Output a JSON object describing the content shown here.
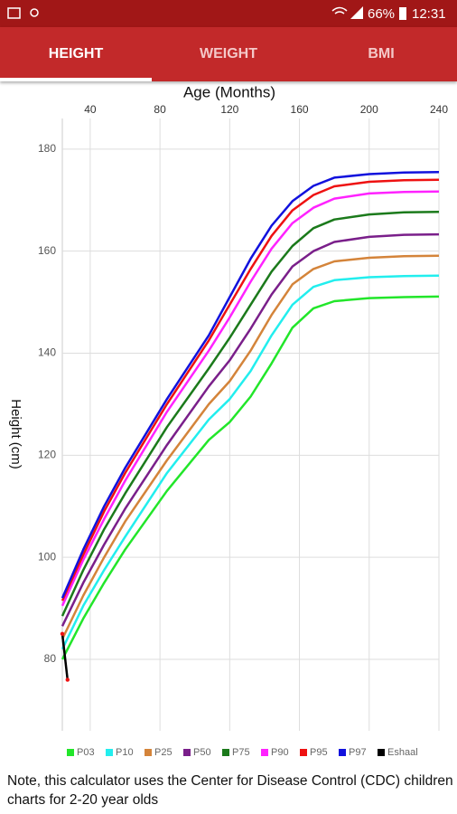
{
  "status_bar": {
    "battery": "66%",
    "time": "12:31"
  },
  "tabs": [
    "HEIGHT",
    "WEIGHT",
    "BMI"
  ],
  "chart_data": {
    "type": "line",
    "xlabel": "Age (Months)",
    "ylabel": "Height (cm)",
    "x": [
      24,
      36,
      48,
      60,
      84,
      108,
      120,
      132,
      144,
      156,
      168,
      180,
      200,
      220,
      240
    ],
    "xlim": [
      24,
      240
    ],
    "xticks": [
      40,
      80,
      120,
      160,
      200,
      240
    ],
    "ylim": [
      66,
      186
    ],
    "yticks": [
      80,
      100,
      120,
      140,
      160,
      180
    ],
    "grid": true,
    "series": [
      {
        "name": "P03",
        "color": "#22e62a",
        "values": [
          80,
          88,
          95,
          101.5,
          113,
          123,
          126.5,
          131.5,
          138,
          145,
          148.8,
          150.2,
          150.8,
          151,
          151.1
        ]
      },
      {
        "name": "P10",
        "color": "#22eeee",
        "values": [
          82,
          90.5,
          97.5,
          104,
          116.5,
          127,
          131,
          136.5,
          143.5,
          149.5,
          153,
          154.3,
          154.9,
          155.1,
          155.2
        ]
      },
      {
        "name": "P25",
        "color": "#d4843a",
        "values": [
          84,
          92.5,
          100,
          107,
          119,
          130,
          134.5,
          140.5,
          147.5,
          153.5,
          156.5,
          158,
          158.7,
          159,
          159.1
        ]
      },
      {
        "name": "P50",
        "color": "#7a1f8a",
        "values": [
          86.5,
          95,
          102.5,
          109.5,
          122,
          133.5,
          138.6,
          144.8,
          151.5,
          157,
          160,
          161.8,
          162.8,
          163.2,
          163.3
        ]
      },
      {
        "name": "P75",
        "color": "#1b7a1b",
        "values": [
          88.5,
          97.5,
          105.5,
          112.5,
          125.5,
          137,
          143,
          149.5,
          156,
          161,
          164.5,
          166.2,
          167.2,
          167.6,
          167.7
        ]
      },
      {
        "name": "P90",
        "color": "#ff22ff",
        "values": [
          90.5,
          99.5,
          107.5,
          115,
          128.5,
          140.5,
          147,
          154,
          160.5,
          165.5,
          168.5,
          170.3,
          171.3,
          171.6,
          171.7
        ]
      },
      {
        "name": "P95",
        "color": "#ee1111",
        "values": [
          91.5,
          100.5,
          109,
          116.5,
          130,
          142.5,
          149.5,
          156.5,
          163,
          168,
          171,
          172.7,
          173.6,
          173.9,
          174
        ]
      },
      {
        "name": "P97",
        "color": "#1111dd",
        "values": [
          92,
          101.5,
          110,
          117.5,
          131,
          143.5,
          151,
          158.5,
          165,
          169.8,
          172.8,
          174.4,
          175.1,
          175.4,
          175.5
        ]
      },
      {
        "name": "Eshaal",
        "color": "#000000",
        "x": [
          24,
          27
        ],
        "values": [
          85,
          76
        ]
      }
    ]
  },
  "note": "Note, this calculator uses the Center for Disease Control (CDC) children charts for 2-20 year olds"
}
